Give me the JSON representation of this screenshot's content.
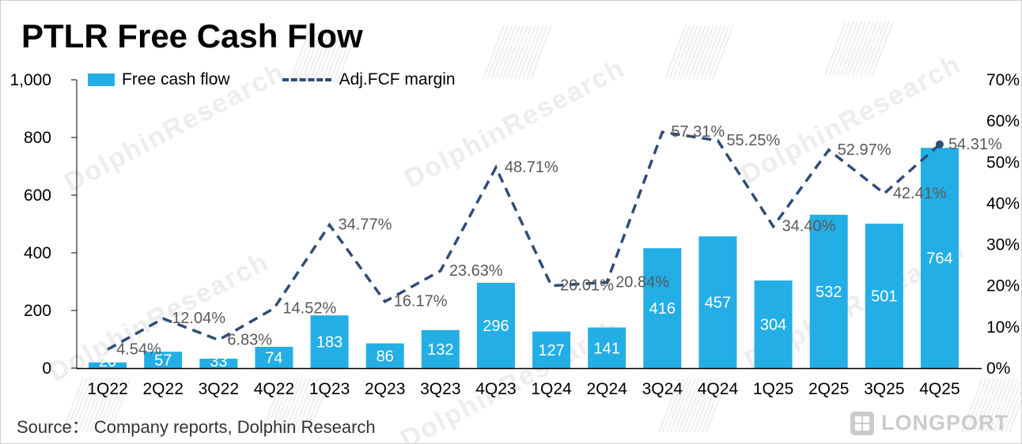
{
  "title": "PTLR Free Cash Flow",
  "legend": {
    "bar_label": "Free cash flow",
    "line_label": "Adj.FCF margin"
  },
  "source": "Source： Company reports, Dolphin Research",
  "watermark": "DolphinResearch",
  "logo": "LONGPORT",
  "colors": {
    "bar": "#23AEE6",
    "line": "#2E4D76",
    "pct_label": "#595959",
    "axis": "#000000",
    "bar_label": "#FFFFFF"
  },
  "chart_data": {
    "type": "bar",
    "title": "PTLR Free Cash Flow",
    "categories": [
      "1Q22",
      "2Q22",
      "3Q22",
      "4Q22",
      "1Q23",
      "2Q23",
      "3Q23",
      "4Q23",
      "1Q24",
      "2Q24",
      "3Q24",
      "4Q24",
      "1Q25",
      "2Q25",
      "3Q25",
      "4Q25"
    ],
    "series": [
      {
        "name": "Free cash flow",
        "kind": "bar",
        "axis": "left",
        "values": [
          20,
          57,
          33,
          74,
          183,
          86,
          132,
          296,
          127,
          141,
          416,
          457,
          304,
          532,
          501,
          764
        ],
        "labels": [
          "20",
          "57",
          "33",
          "74",
          "183",
          "86",
          "132",
          "296",
          "127",
          "141",
          "416",
          "457",
          "304",
          "532",
          "501",
          "764"
        ]
      },
      {
        "name": "Adj.FCF margin",
        "kind": "line",
        "axis": "right",
        "values": [
          4.54,
          12.04,
          6.83,
          14.52,
          34.77,
          16.17,
          23.63,
          48.71,
          20.01,
          20.84,
          57.31,
          55.25,
          34.4,
          52.97,
          42.41,
          54.31
        ],
        "labels": [
          "4.54%",
          "12.04%",
          "6.83%",
          "14.52%",
          "34.77%",
          "16.17%",
          "23.63%",
          "48.71%",
          "20.01%",
          "20.84%",
          "57.31%",
          "55.25%",
          "34.40%",
          "52.97%",
          "42.41%",
          "54.31%"
        ]
      }
    ],
    "left_axis": {
      "min": 0,
      "max": 1000,
      "step": 200
    },
    "right_axis": {
      "min": 0,
      "max": 70,
      "step": 10,
      "suffix": "%"
    },
    "legend_position": "top",
    "grid": false
  }
}
